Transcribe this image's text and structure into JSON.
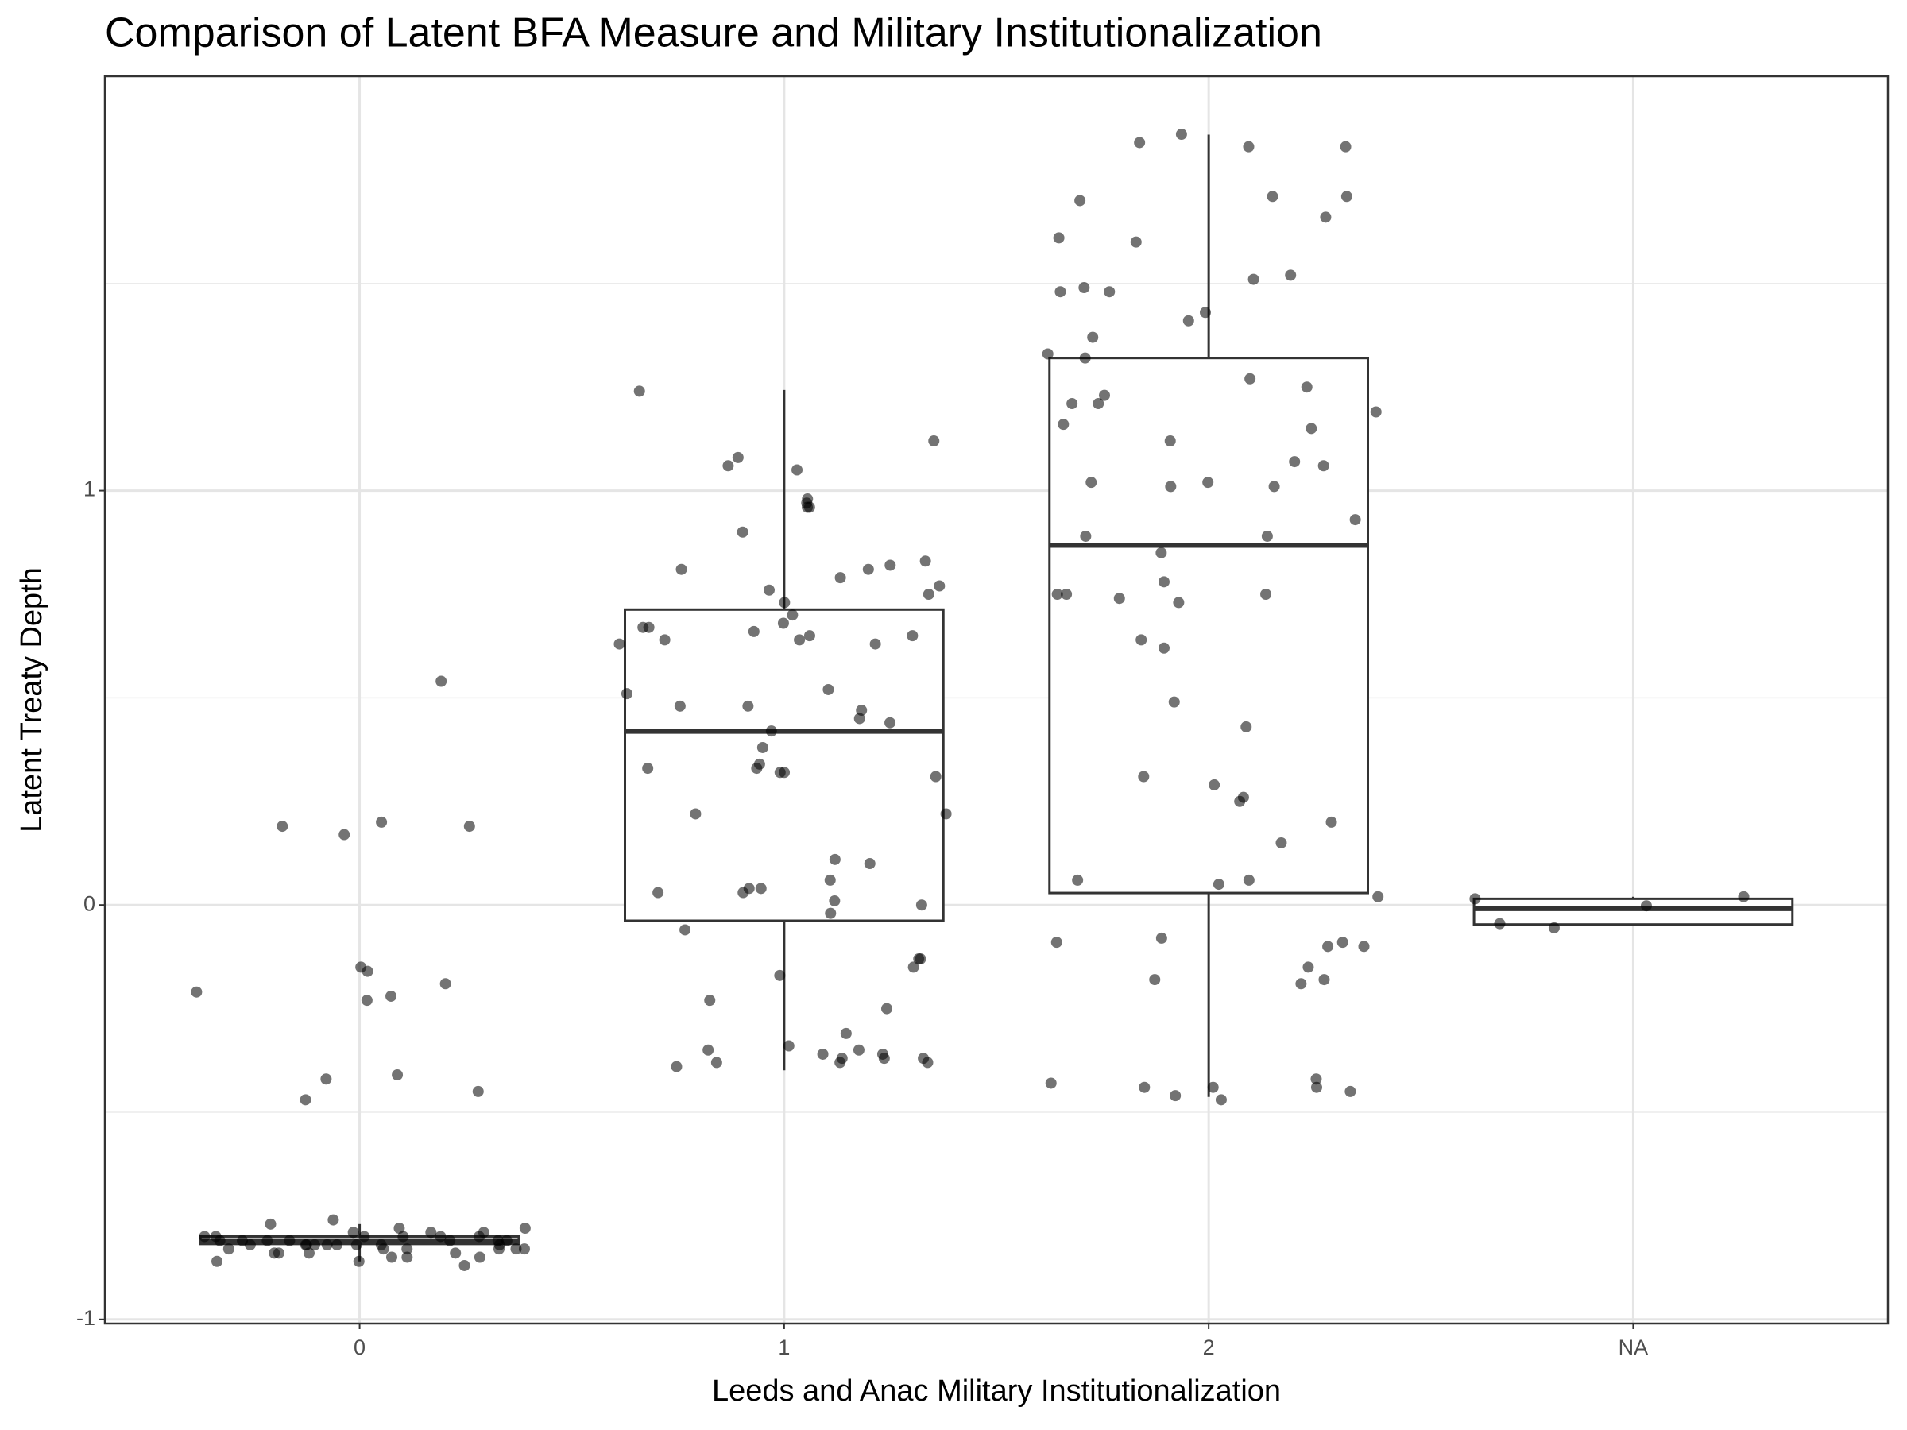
{
  "chart_data": {
    "type": "box",
    "title": "Comparison of Latent BFA Measure and Military Institutionalization",
    "x_label": "Leeds and Anac Military Institutionalization",
    "y_label": "Latent Treaty Depth",
    "categories": [
      "0",
      "1",
      "2",
      "NA"
    ],
    "ylim": [
      -1.01,
      2.0
    ],
    "yticks": [
      -1,
      0,
      1
    ],
    "minor_yticks": [
      -0.5,
      0.5,
      1.5
    ],
    "grid": true,
    "box_color": "#333333",
    "point_color": "#000000",
    "boxes": [
      {
        "whisker_low": -0.86,
        "q1": -0.818,
        "median": -0.81,
        "q3": -0.8,
        "whisker_high": -0.77,
        "points": [
          0.54,
          0.2,
          0.17,
          0.19,
          0.19,
          -0.19,
          -0.15,
          -0.16,
          -0.23,
          -0.21,
          -0.22,
          -0.41,
          -0.42,
          -0.45,
          -0.47,
          -0.76,
          -0.77,
          -0.78,
          -0.79,
          -0.79,
          -0.8,
          -0.8,
          -0.8,
          -0.81,
          -0.81,
          -0.81,
          -0.81,
          -0.82,
          -0.82,
          -0.82,
          -0.82,
          -0.82,
          -0.82,
          -0.83,
          -0.83,
          -0.83,
          -0.83,
          -0.84,
          -0.84,
          -0.84,
          -0.85,
          -0.85,
          -0.86,
          -0.86,
          -0.87,
          -0.8,
          -0.81,
          -0.82,
          -0.83,
          -0.81,
          -0.79,
          -0.84,
          -0.82,
          -0.8,
          -0.83,
          -0.81,
          -0.82,
          -0.78,
          -0.85,
          -0.8
        ]
      },
      {
        "whisker_low": -0.399,
        "q1": -0.038,
        "median": 0.419,
        "q3": 0.713,
        "whisker_high": 1.243,
        "points": [
          1.24,
          1.08,
          1.06,
          1.12,
          1.05,
          0.98,
          0.97,
          0.96,
          0.96,
          0.9,
          0.83,
          0.82,
          0.81,
          0.81,
          0.79,
          0.77,
          0.76,
          0.75,
          0.73,
          0.7,
          0.68,
          0.67,
          0.67,
          0.66,
          0.65,
          0.65,
          0.64,
          0.64,
          0.63,
          0.63,
          0.52,
          0.51,
          0.48,
          0.48,
          0.47,
          0.45,
          0.44,
          0.42,
          0.38,
          0.34,
          0.33,
          0.33,
          0.32,
          0.32,
          0.31,
          0.22,
          0.22,
          0.11,
          0.1,
          0.06,
          0.04,
          0.04,
          0.03,
          0.03,
          0.01,
          0.0,
          -0.02,
          -0.06,
          -0.13,
          -0.13,
          -0.15,
          -0.17,
          -0.23,
          -0.25,
          -0.31,
          -0.34,
          -0.35,
          -0.35,
          -0.36,
          -0.36,
          -0.37,
          -0.37,
          -0.37,
          -0.38,
          -0.38,
          -0.38,
          -0.39
        ]
      },
      {
        "whisker_low": -0.463,
        "q1": 0.029,
        "median": 0.868,
        "q3": 1.32,
        "whisker_high": 1.859,
        "points": [
          1.86,
          1.84,
          1.83,
          1.83,
          1.71,
          1.71,
          1.7,
          1.66,
          1.61,
          1.6,
          1.52,
          1.51,
          1.49,
          1.48,
          1.48,
          1.43,
          1.41,
          1.37,
          1.33,
          1.32,
          1.27,
          1.25,
          1.23,
          1.21,
          1.21,
          1.19,
          1.16,
          1.15,
          1.12,
          1.07,
          1.06,
          1.02,
          1.02,
          1.01,
          1.01,
          0.93,
          0.89,
          0.89,
          0.85,
          0.78,
          0.75,
          0.75,
          0.75,
          0.74,
          0.73,
          0.64,
          0.62,
          0.49,
          0.43,
          0.31,
          0.29,
          0.26,
          0.25,
          0.2,
          0.15,
          0.06,
          0.06,
          0.05,
          0.02,
          -0.08,
          -0.09,
          -0.09,
          -0.1,
          -0.1,
          -0.15,
          -0.18,
          -0.18,
          -0.19,
          -0.42,
          -0.43,
          -0.44,
          -0.44,
          -0.44,
          -0.45,
          -0.46,
          -0.47
        ]
      },
      {
        "whisker_low": -0.05,
        "q1": -0.047,
        "median": -0.009,
        "q3": 0.015,
        "whisker_high": 0.02,
        "points": [
          0.02,
          -0.002,
          0.015,
          -0.045,
          -0.055
        ]
      }
    ]
  }
}
